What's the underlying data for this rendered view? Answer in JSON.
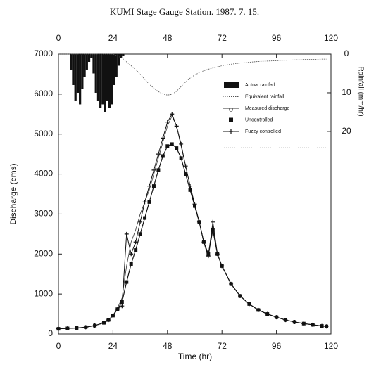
{
  "chart_data": {
    "type": "line",
    "title": "KUMI  Stage Gauge Station. 1987. 7. 15.",
    "x_label": "Time (hr)",
    "y_label": "Discharge (cms)",
    "y2_label": "Rainfall (mm/hr)",
    "xlim": [
      0,
      120
    ],
    "xticks": [
      0,
      24,
      48,
      72,
      96,
      120
    ],
    "ylim": [
      0,
      7000
    ],
    "yticks": [
      0,
      1000,
      2000,
      3000,
      4000,
      5000,
      6000,
      7000
    ],
    "y2lim": [
      72.4,
      0
    ],
    "y2ticks": [
      0,
      10,
      20
    ],
    "legend": "upper right",
    "series": [
      {
        "name": "Actual rainfall",
        "color": "#111111",
        "mark": "bar",
        "axis": "y2",
        "x": [
          5,
          6,
          7,
          8,
          9,
          10,
          11,
          12,
          13,
          14,
          15,
          16,
          17,
          18,
          19,
          20,
          21,
          22,
          23,
          24,
          25,
          26,
          27,
          28
        ],
        "values": [
          4,
          8,
          12,
          10,
          13,
          9,
          6,
          4,
          2,
          1,
          5,
          10,
          12,
          14,
          13,
          15,
          12,
          14,
          13,
          8,
          6,
          3,
          1,
          0.5
        ]
      },
      {
        "name": "Equivalent rainfall",
        "color": "#555555",
        "mark": "dashed",
        "axis": "y2",
        "x": [
          0,
          4,
          8,
          12,
          16,
          20,
          22,
          24,
          26,
          28,
          30,
          32,
          34,
          36,
          38,
          40,
          42,
          44,
          46,
          48,
          50,
          52,
          54,
          56,
          58,
          60,
          62,
          64,
          66,
          68,
          70,
          72,
          76,
          80,
          84,
          88,
          92,
          96,
          100,
          104,
          108,
          112,
          116,
          118
        ],
        "values": [
          0,
          0,
          0,
          0,
          0,
          0,
          0,
          0,
          0.5,
          1,
          2,
          3,
          4,
          5.2,
          6.5,
          7.8,
          8.8,
          9.7,
          10.3,
          10.6,
          10.4,
          9.6,
          8.4,
          7.2,
          6.2,
          5.4,
          4.8,
          4.3,
          3.9,
          3.6,
          3.3,
          3.0,
          2.6,
          2.3,
          2.1,
          1.9,
          1.8,
          1.7,
          1.6,
          1.5,
          1.4,
          1.4,
          1.3,
          1.3
        ]
      },
      {
        "name": "Measured discharge",
        "color": "#333333",
        "mark": "line",
        "x": [
          0,
          4,
          8,
          12,
          16,
          20,
          22,
          24,
          26,
          28,
          30,
          32,
          34,
          36,
          38,
          40,
          42,
          44,
          46,
          48,
          50,
          52,
          54,
          56,
          58,
          60,
          62,
          64,
          66,
          68,
          70,
          72,
          76,
          80,
          84,
          88,
          92,
          96,
          100,
          104,
          108,
          112,
          116,
          118
        ],
        "values": [
          130,
          140,
          150,
          170,
          210,
          280,
          350,
          470,
          650,
          900,
          1700,
          2300,
          2600,
          3000,
          3300,
          3600,
          4000,
          4400,
          4800,
          5200,
          5450,
          5200,
          4700,
          4200,
          3700,
          3200,
          2800,
          2300,
          1900,
          2700,
          2000,
          1700,
          1250,
          950,
          750,
          600,
          500,
          420,
          350,
          300,
          260,
          230,
          200,
          190
        ]
      },
      {
        "name": "Uncontrolled",
        "color": "#111111",
        "mark": "square",
        "x": [
          0,
          4,
          8,
          12,
          16,
          20,
          22,
          24,
          26,
          28,
          30,
          32,
          34,
          36,
          38,
          40,
          42,
          44,
          46,
          48,
          50,
          52,
          54,
          56,
          58,
          60,
          62,
          64,
          66,
          68,
          70,
          72,
          76,
          80,
          84,
          88,
          92,
          96,
          100,
          104,
          108,
          112,
          116,
          118
        ],
        "values": [
          130,
          140,
          150,
          170,
          210,
          280,
          350,
          460,
          620,
          800,
          1300,
          1750,
          2100,
          2500,
          2900,
          3300,
          3700,
          4100,
          4450,
          4700,
          4750,
          4650,
          4400,
          4000,
          3600,
          3200,
          2800,
          2300,
          2000,
          2600,
          2000,
          1700,
          1250,
          950,
          750,
          600,
          500,
          420,
          350,
          300,
          260,
          230,
          200,
          190
        ]
      },
      {
        "name": "Fuzzy controlled",
        "color": "#111111",
        "mark": "plus",
        "x": [
          0,
          4,
          8,
          12,
          16,
          20,
          22,
          24,
          26,
          28,
          30,
          32,
          34,
          36,
          38,
          40,
          42,
          44,
          46,
          48,
          50,
          52,
          54,
          56,
          58,
          60,
          62,
          64,
          66,
          68,
          70,
          72,
          76,
          80,
          84,
          88,
          92,
          96,
          100,
          104,
          108,
          112,
          116,
          118
        ],
        "values": [
          130,
          140,
          150,
          170,
          210,
          280,
          350,
          460,
          620,
          700,
          2500,
          2000,
          2300,
          2800,
          3300,
          3700,
          4100,
          4500,
          4900,
          5300,
          5500,
          5200,
          4750,
          4200,
          3700,
          3250,
          2800,
          2300,
          1950,
          2800,
          2000,
          1700,
          1250,
          950,
          750,
          600,
          500,
          420,
          350,
          300,
          260,
          230,
          200,
          190
        ]
      }
    ]
  }
}
